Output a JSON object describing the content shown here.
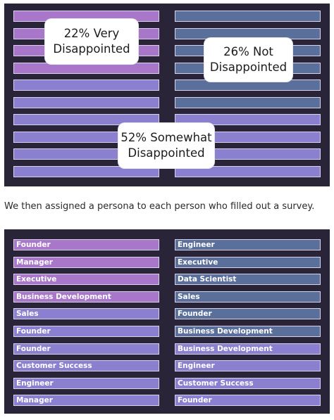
{
  "colors": {
    "panel": "#2a2438",
    "very": "#a877c9",
    "somewhat": "#8a80cf",
    "not": "#5a6f9a"
  },
  "chart1": {
    "left": [
      "very",
      "very",
      "very",
      "very",
      "somewhat",
      "somewhat",
      "somewhat",
      "somewhat",
      "somewhat",
      "somewhat"
    ],
    "right": [
      "not",
      "not",
      "not",
      "not",
      "not",
      "not",
      "somewhat",
      "somewhat",
      "somewhat",
      "somewhat"
    ],
    "callouts": {
      "very": "22% Very Disappointed",
      "not": "26% Not Disappointed",
      "somewhat": "52% Somewhat Disappointed"
    }
  },
  "caption": "We then assigned a persona to each person who filled out a survey.",
  "chart2": {
    "left": [
      {
        "label": "Founder",
        "group": "very"
      },
      {
        "label": "Manager",
        "group": "very"
      },
      {
        "label": "Executive",
        "group": "very"
      },
      {
        "label": "Business Development",
        "group": "very"
      },
      {
        "label": "Sales",
        "group": "somewhat"
      },
      {
        "label": "Founder",
        "group": "somewhat"
      },
      {
        "label": "Founder",
        "group": "somewhat"
      },
      {
        "label": "Customer Success",
        "group": "somewhat"
      },
      {
        "label": "Engineer",
        "group": "somewhat"
      },
      {
        "label": "Manager",
        "group": "somewhat"
      }
    ],
    "right": [
      {
        "label": "Engineer",
        "group": "not"
      },
      {
        "label": "Executive",
        "group": "not"
      },
      {
        "label": "Data Scientist",
        "group": "not"
      },
      {
        "label": "Sales",
        "group": "not"
      },
      {
        "label": "Founder",
        "group": "not"
      },
      {
        "label": "Business Development",
        "group": "not"
      },
      {
        "label": "Business Development",
        "group": "somewhat"
      },
      {
        "label": "Engineer",
        "group": "somewhat"
      },
      {
        "label": "Customer Success",
        "group": "somewhat"
      },
      {
        "label": "Founder",
        "group": "somewhat"
      }
    ]
  }
}
